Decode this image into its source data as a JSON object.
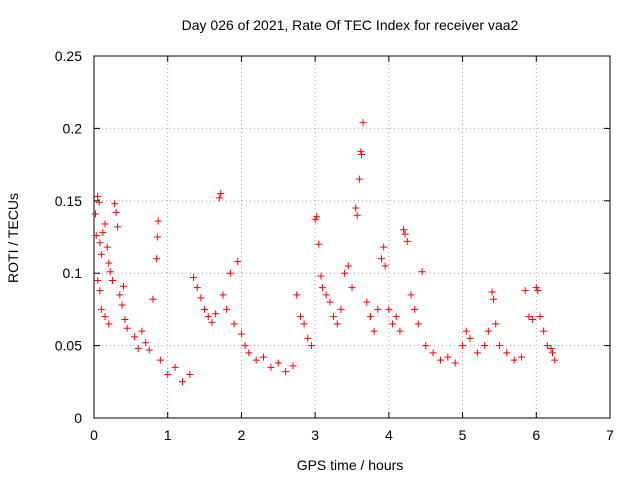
{
  "chart_data": {
    "type": "scatter",
    "title": "Day 026 of 2021, Rate Of TEC Index for receiver vaa2",
    "xlabel": "GPS time / hours",
    "ylabel": "ROTI / TECUs",
    "xlim": [
      0,
      7
    ],
    "ylim": [
      0,
      0.25
    ],
    "x_ticks": [
      0,
      1,
      2,
      3,
      4,
      5,
      6,
      7
    ],
    "x_tick_labels": [
      "0",
      "1",
      "2",
      "3",
      "4",
      "5",
      "6",
      "7"
    ],
    "y_ticks": [
      0,
      0.05,
      0.1,
      0.15,
      0.2,
      0.25
    ],
    "y_tick_labels": [
      "0",
      "0.05",
      "0.1",
      "0.15",
      "0.2",
      "0.25"
    ],
    "grid": true,
    "marker": "+",
    "marker_color": "#ff0000",
    "series": [
      {
        "name": "ROTI",
        "points": [
          [
            0.02,
            0.141
          ],
          [
            0.05,
            0.153
          ],
          [
            0.07,
            0.149
          ],
          [
            0.03,
            0.126
          ],
          [
            0.08,
            0.121
          ],
          [
            0.1,
            0.113
          ],
          [
            0.12,
            0.128
          ],
          [
            0.15,
            0.134
          ],
          [
            0.18,
            0.118
          ],
          [
            0.2,
            0.107
          ],
          [
            0.22,
            0.101
          ],
          [
            0.25,
            0.095
          ],
          [
            0.28,
            0.148
          ],
          [
            0.3,
            0.142
          ],
          [
            0.32,
            0.132
          ],
          [
            0.35,
            0.085
          ],
          [
            0.38,
            0.078
          ],
          [
            0.4,
            0.091
          ],
          [
            0.42,
            0.068
          ],
          [
            0.45,
            0.062
          ],
          [
            0.05,
            0.095
          ],
          [
            0.08,
            0.088
          ],
          [
            0.1,
            0.075
          ],
          [
            0.15,
            0.07
          ],
          [
            0.2,
            0.065
          ],
          [
            0.55,
            0.056
          ],
          [
            0.6,
            0.048
          ],
          [
            0.65,
            0.06
          ],
          [
            0.7,
            0.052
          ],
          [
            0.75,
            0.047
          ],
          [
            0.8,
            0.082
          ],
          [
            0.85,
            0.11
          ],
          [
            0.86,
            0.125
          ],
          [
            0.87,
            0.136
          ],
          [
            0.9,
            0.04
          ],
          [
            1.0,
            0.03
          ],
          [
            1.1,
            0.035
          ],
          [
            1.2,
            0.025
          ],
          [
            1.3,
            0.03
          ],
          [
            1.35,
            0.097
          ],
          [
            1.4,
            0.09
          ],
          [
            1.45,
            0.083
          ],
          [
            1.5,
            0.075
          ],
          [
            1.55,
            0.07
          ],
          [
            1.6,
            0.066
          ],
          [
            1.65,
            0.072
          ],
          [
            1.7,
            0.152
          ],
          [
            1.72,
            0.155
          ],
          [
            1.75,
            0.085
          ],
          [
            1.8,
            0.075
          ],
          [
            1.85,
            0.1
          ],
          [
            1.9,
            0.065
          ],
          [
            1.95,
            0.108
          ],
          [
            2.0,
            0.058
          ],
          [
            2.05,
            0.05
          ],
          [
            2.1,
            0.045
          ],
          [
            2.2,
            0.04
          ],
          [
            2.3,
            0.042
          ],
          [
            2.4,
            0.035
          ],
          [
            2.5,
            0.038
          ],
          [
            2.6,
            0.032
          ],
          [
            2.7,
            0.036
          ],
          [
            2.75,
            0.085
          ],
          [
            2.8,
            0.07
          ],
          [
            2.85,
            0.065
          ],
          [
            2.9,
            0.055
          ],
          [
            2.95,
            0.05
          ],
          [
            3.0,
            0.137
          ],
          [
            3.02,
            0.139
          ],
          [
            3.05,
            0.12
          ],
          [
            3.08,
            0.098
          ],
          [
            3.1,
            0.09
          ],
          [
            3.15,
            0.085
          ],
          [
            3.2,
            0.08
          ],
          [
            3.25,
            0.07
          ],
          [
            3.3,
            0.065
          ],
          [
            3.35,
            0.075
          ],
          [
            3.4,
            0.1
          ],
          [
            3.45,
            0.105
          ],
          [
            3.5,
            0.09
          ],
          [
            3.55,
            0.145
          ],
          [
            3.57,
            0.14
          ],
          [
            3.6,
            0.165
          ],
          [
            3.62,
            0.184
          ],
          [
            3.63,
            0.182
          ],
          [
            3.65,
            0.204
          ],
          [
            3.7,
            0.08
          ],
          [
            3.75,
            0.07
          ],
          [
            3.8,
            0.06
          ],
          [
            3.85,
            0.075
          ],
          [
            3.9,
            0.11
          ],
          [
            3.93,
            0.118
          ],
          [
            3.95,
            0.105
          ],
          [
            4.0,
            0.075
          ],
          [
            4.05,
            0.065
          ],
          [
            4.1,
            0.07
          ],
          [
            4.15,
            0.06
          ],
          [
            4.2,
            0.13
          ],
          [
            4.22,
            0.127
          ],
          [
            4.25,
            0.122
          ],
          [
            4.3,
            0.085
          ],
          [
            4.35,
            0.075
          ],
          [
            4.4,
            0.065
          ],
          [
            4.45,
            0.101
          ],
          [
            4.5,
            0.05
          ],
          [
            4.6,
            0.045
          ],
          [
            4.7,
            0.04
          ],
          [
            4.8,
            0.042
          ],
          [
            4.9,
            0.038
          ],
          [
            5.0,
            0.05
          ],
          [
            5.05,
            0.06
          ],
          [
            5.1,
            0.055
          ],
          [
            5.2,
            0.045
          ],
          [
            5.3,
            0.05
          ],
          [
            5.35,
            0.06
          ],
          [
            5.4,
            0.087
          ],
          [
            5.42,
            0.082
          ],
          [
            5.45,
            0.065
          ],
          [
            5.5,
            0.05
          ],
          [
            5.6,
            0.045
          ],
          [
            5.7,
            0.04
          ],
          [
            5.8,
            0.042
          ],
          [
            5.85,
            0.088
          ],
          [
            5.9,
            0.07
          ],
          [
            5.95,
            0.068
          ],
          [
            6.0,
            0.09
          ],
          [
            6.02,
            0.088
          ],
          [
            6.05,
            0.07
          ],
          [
            6.1,
            0.06
          ],
          [
            6.15,
            0.05
          ],
          [
            6.2,
            0.048
          ],
          [
            6.22,
            0.045
          ],
          [
            6.25,
            0.04
          ]
        ]
      }
    ]
  }
}
